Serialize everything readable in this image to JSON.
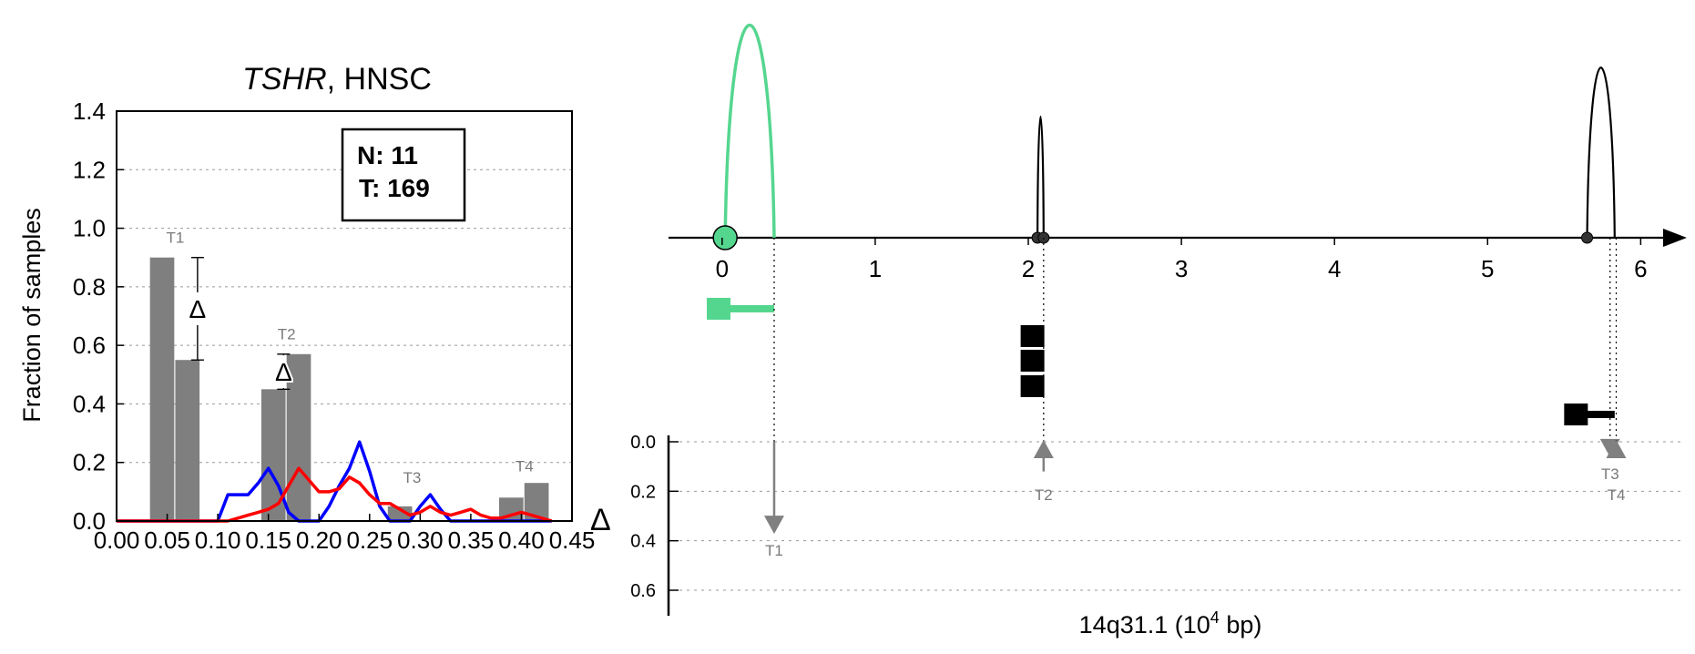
{
  "colors": {
    "bar": "#7f7f7f",
    "normal_line": "#0000ff",
    "tumor_line": "#ff0000",
    "highlight": "#55d68f",
    "marker_gray": "#808080",
    "grid": "#9a9a9a"
  },
  "chart_data": [
    {
      "type": "bar",
      "title_gene": "TSHR",
      "title_rest": ", HNSC",
      "xlabel": "",
      "ylabel": "Fraction of samples",
      "xlim": [
        0.0,
        0.45
      ],
      "ylim": [
        0.0,
        1.4
      ],
      "xticks": [
        "0.00",
        "0.05",
        "0.10",
        "0.15",
        "0.20",
        "0.25",
        "0.30",
        "0.35",
        "0.40",
        "0.45"
      ],
      "yticks": [
        "0.0",
        "0.2",
        "0.4",
        "0.6",
        "0.8",
        "1.0",
        "1.2",
        "1.4"
      ],
      "y_grid": true,
      "legend": {
        "position": "top-right",
        "lines": [
          "N: 11",
          "T: 169"
        ]
      },
      "bars": [
        {
          "x": 0.045,
          "value": 0.9,
          "group": "N"
        },
        {
          "x": 0.07,
          "value": 0.55,
          "group": "T"
        },
        {
          "x": 0.155,
          "value": 0.45,
          "group": "N"
        },
        {
          "x": 0.18,
          "value": 0.57,
          "group": "T"
        },
        {
          "x": 0.28,
          "value": 0.05,
          "group": "T"
        },
        {
          "x": 0.39,
          "value": 0.08,
          "group": "N"
        },
        {
          "x": 0.415,
          "value": 0.13,
          "group": "T"
        }
      ],
      "peak_labels": [
        {
          "text": "T1",
          "x": 0.058,
          "y": 0.95
        },
        {
          "text": "T2",
          "x": 0.168,
          "y": 0.62
        },
        {
          "text": "T3",
          "x": 0.292,
          "y": 0.13
        },
        {
          "text": "T4",
          "x": 0.403,
          "y": 0.17
        }
      ],
      "delta_annotations": [
        {
          "symbol": "Δ",
          "x": 0.08,
          "y_low": 0.55,
          "y_high": 0.9
        },
        {
          "symbol": "Δ",
          "x": 0.165,
          "y_low": 0.45,
          "y_high": 0.57
        }
      ],
      "series": [
        {
          "name": "N",
          "x": [
            0.0,
            0.1,
            0.11,
            0.12,
            0.13,
            0.14,
            0.15,
            0.16,
            0.17,
            0.18,
            0.19,
            0.2,
            0.21,
            0.22,
            0.23,
            0.24,
            0.25,
            0.26,
            0.27,
            0.28,
            0.29,
            0.3,
            0.31,
            0.32,
            0.33,
            0.34,
            0.35,
            0.36,
            0.37,
            0.38,
            0.39,
            0.4,
            0.41,
            0.42,
            0.43
          ],
          "values": [
            0.0,
            0.0,
            0.09,
            0.09,
            0.09,
            0.13,
            0.18,
            0.12,
            0.03,
            0.0,
            0.0,
            0.0,
            0.05,
            0.12,
            0.18,
            0.27,
            0.17,
            0.05,
            0.0,
            0.0,
            0.0,
            0.05,
            0.09,
            0.04,
            0.0,
            0.0,
            0.0,
            0.0,
            0.0,
            0.0,
            0.0,
            0.0,
            0.0,
            0.0,
            0.0
          ]
        },
        {
          "name": "T",
          "x": [
            0.0,
            0.1,
            0.11,
            0.12,
            0.13,
            0.14,
            0.15,
            0.16,
            0.17,
            0.18,
            0.19,
            0.2,
            0.21,
            0.22,
            0.23,
            0.24,
            0.25,
            0.26,
            0.27,
            0.28,
            0.29,
            0.3,
            0.31,
            0.32,
            0.33,
            0.34,
            0.35,
            0.36,
            0.37,
            0.38,
            0.39,
            0.4,
            0.41,
            0.42,
            0.43
          ],
          "values": [
            0.0,
            0.0,
            0.0,
            0.01,
            0.02,
            0.03,
            0.04,
            0.06,
            0.12,
            0.18,
            0.14,
            0.1,
            0.1,
            0.11,
            0.15,
            0.13,
            0.09,
            0.06,
            0.06,
            0.04,
            0.02,
            0.03,
            0.05,
            0.03,
            0.02,
            0.03,
            0.04,
            0.02,
            0.01,
            0.01,
            0.02,
            0.03,
            0.02,
            0.01,
            0.0
          ]
        }
      ],
      "delta_axis_label": "Δ"
    },
    {
      "type": "line",
      "xlabel_locus": "14q31.1",
      "xlabel_units_base": " (10",
      "xlabel_units_exp": "4",
      "xlabel_units_tail": " bp)",
      "xlim": [
        -0.35,
        6.2
      ],
      "xticks": [
        "0",
        "1",
        "2",
        "3",
        "4",
        "5",
        "6"
      ],
      "lower_yticks": [
        "0.0",
        "0.2",
        "0.4",
        "0.6"
      ],
      "lower_ylim": [
        0.0,
        0.6
      ],
      "y_grid": true,
      "arcs": [
        {
          "start": 0.02,
          "end": 0.34,
          "height": 1.0,
          "color": "highlight"
        },
        {
          "start": 2.06,
          "end": 2.1,
          "height": 0.57,
          "color": "black"
        },
        {
          "start": 5.65,
          "end": 5.83,
          "height": 0.8,
          "color": "black"
        }
      ],
      "nodes": [
        {
          "x": 0.02,
          "highlight": true
        },
        {
          "x": 2.06,
          "highlight": false
        },
        {
          "x": 2.1,
          "highlight": false
        },
        {
          "x": 5.65,
          "highlight": false
        }
      ],
      "transcripts": [
        {
          "start": -0.1,
          "end": 0.34,
          "row": 0,
          "color": "highlight"
        },
        {
          "start": 1.95,
          "end": 2.1,
          "row": 1,
          "color": "black"
        },
        {
          "start": 1.95,
          "end": 2.1,
          "row": 2,
          "color": "black"
        },
        {
          "start": 1.95,
          "end": 2.1,
          "row": 3,
          "color": "black"
        },
        {
          "start": 5.5,
          "end": 5.83,
          "row": 4,
          "color": "black"
        }
      ],
      "deltas": [
        {
          "label": "T1",
          "x": 0.34,
          "value": 0.35,
          "direction": "down"
        },
        {
          "label": "T2",
          "x": 2.1,
          "value": 0.12,
          "direction": "up"
        },
        {
          "label": "T3",
          "x": 5.8,
          "value": 0.04,
          "direction": "down"
        },
        {
          "label": "T4",
          "x": 5.84,
          "value": 0.05,
          "direction": "up"
        }
      ]
    }
  ]
}
